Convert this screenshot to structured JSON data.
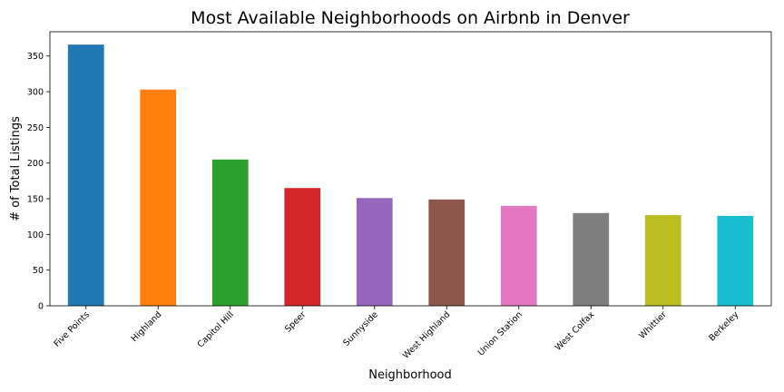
{
  "chart_data": {
    "type": "bar",
    "title": "Most Available Neighborhoods on Airbnb in Denver",
    "xlabel": "Neighborhood",
    "ylabel": "# of Total Listings",
    "categories": [
      "Five Points",
      "Highland",
      "Capitol Hill",
      "Speer",
      "Sunnyside",
      "West Highland",
      "Union Station",
      "West Colfax",
      "Whittier",
      "Berkeley"
    ],
    "values": [
      366,
      303,
      205,
      165,
      151,
      149,
      140,
      130,
      127,
      126
    ],
    "colors": [
      "#1f77b4",
      "#ff7f0e",
      "#2ca02c",
      "#d62728",
      "#9467bd",
      "#8c564b",
      "#e377c2",
      "#7f7f7f",
      "#bcbd22",
      "#17becf"
    ],
    "ylim": [
      0,
      384
    ],
    "yticks": [
      0,
      50,
      100,
      150,
      200,
      250,
      300,
      350
    ],
    "grid": false,
    "legend": "none"
  }
}
